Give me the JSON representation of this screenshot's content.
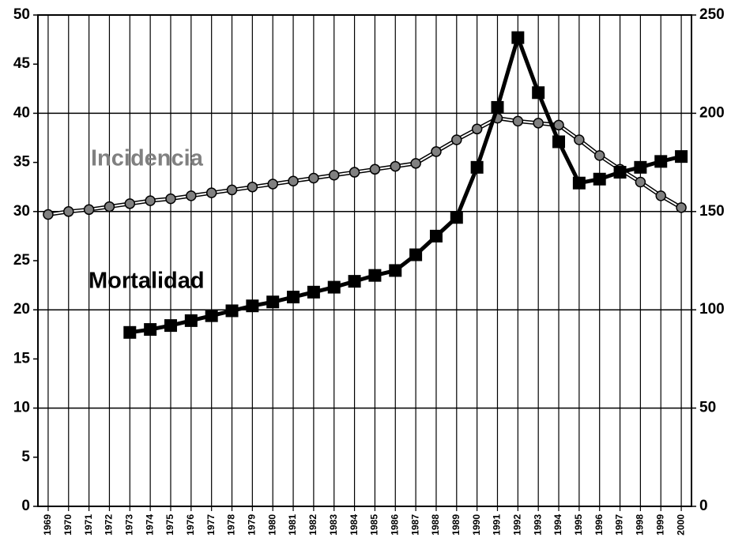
{
  "chart_data": {
    "type": "line",
    "categories": [
      "1969",
      "1970",
      "1971",
      "1972",
      "1973",
      "1974",
      "1975",
      "1976",
      "1977",
      "1978",
      "1979",
      "1980",
      "1981",
      "1982",
      "1983",
      "1984",
      "1985",
      "1986",
      "1987",
      "1988",
      "1989",
      "1990",
      "1991",
      "1992",
      "1993",
      "1994",
      "1995",
      "1996",
      "1997",
      "1998",
      "1999",
      "2000"
    ],
    "series": [
      {
        "name": "Incidencia",
        "color": "#808080",
        "marker": "circle",
        "axis": "y2",
        "values": [
          148.5,
          150,
          151,
          152.5,
          154,
          155.5,
          156.5,
          158,
          159.5,
          161,
          162.5,
          164,
          165.5,
          167,
          168.5,
          170,
          171.5,
          173,
          174.5,
          180.5,
          186.5,
          192,
          197.5,
          196,
          195,
          194,
          186.5,
          178.5,
          171.5,
          165,
          158,
          152
        ]
      },
      {
        "name": "Mortalidad",
        "color": "#000000",
        "marker": "square",
        "values": [
          null,
          null,
          null,
          null,
          17.7,
          18.0,
          18.4,
          18.9,
          19.4,
          19.9,
          20.4,
          20.8,
          21.3,
          21.8,
          22.3,
          22.9,
          23.5,
          24.0,
          25.6,
          27.5,
          29.4,
          34.5,
          40.6,
          47.7,
          42.1,
          37.1,
          32.9,
          33.3,
          34.0,
          34.5,
          35.1,
          35.6
        ]
      }
    ],
    "ylim": [
      0,
      50
    ],
    "yticks": [
      0,
      5,
      10,
      15,
      20,
      25,
      30,
      35,
      40,
      45,
      50
    ],
    "y2lim": [
      0,
      250
    ],
    "y2ticks": [
      0,
      50,
      100,
      150,
      200,
      250
    ],
    "grid": true
  }
}
